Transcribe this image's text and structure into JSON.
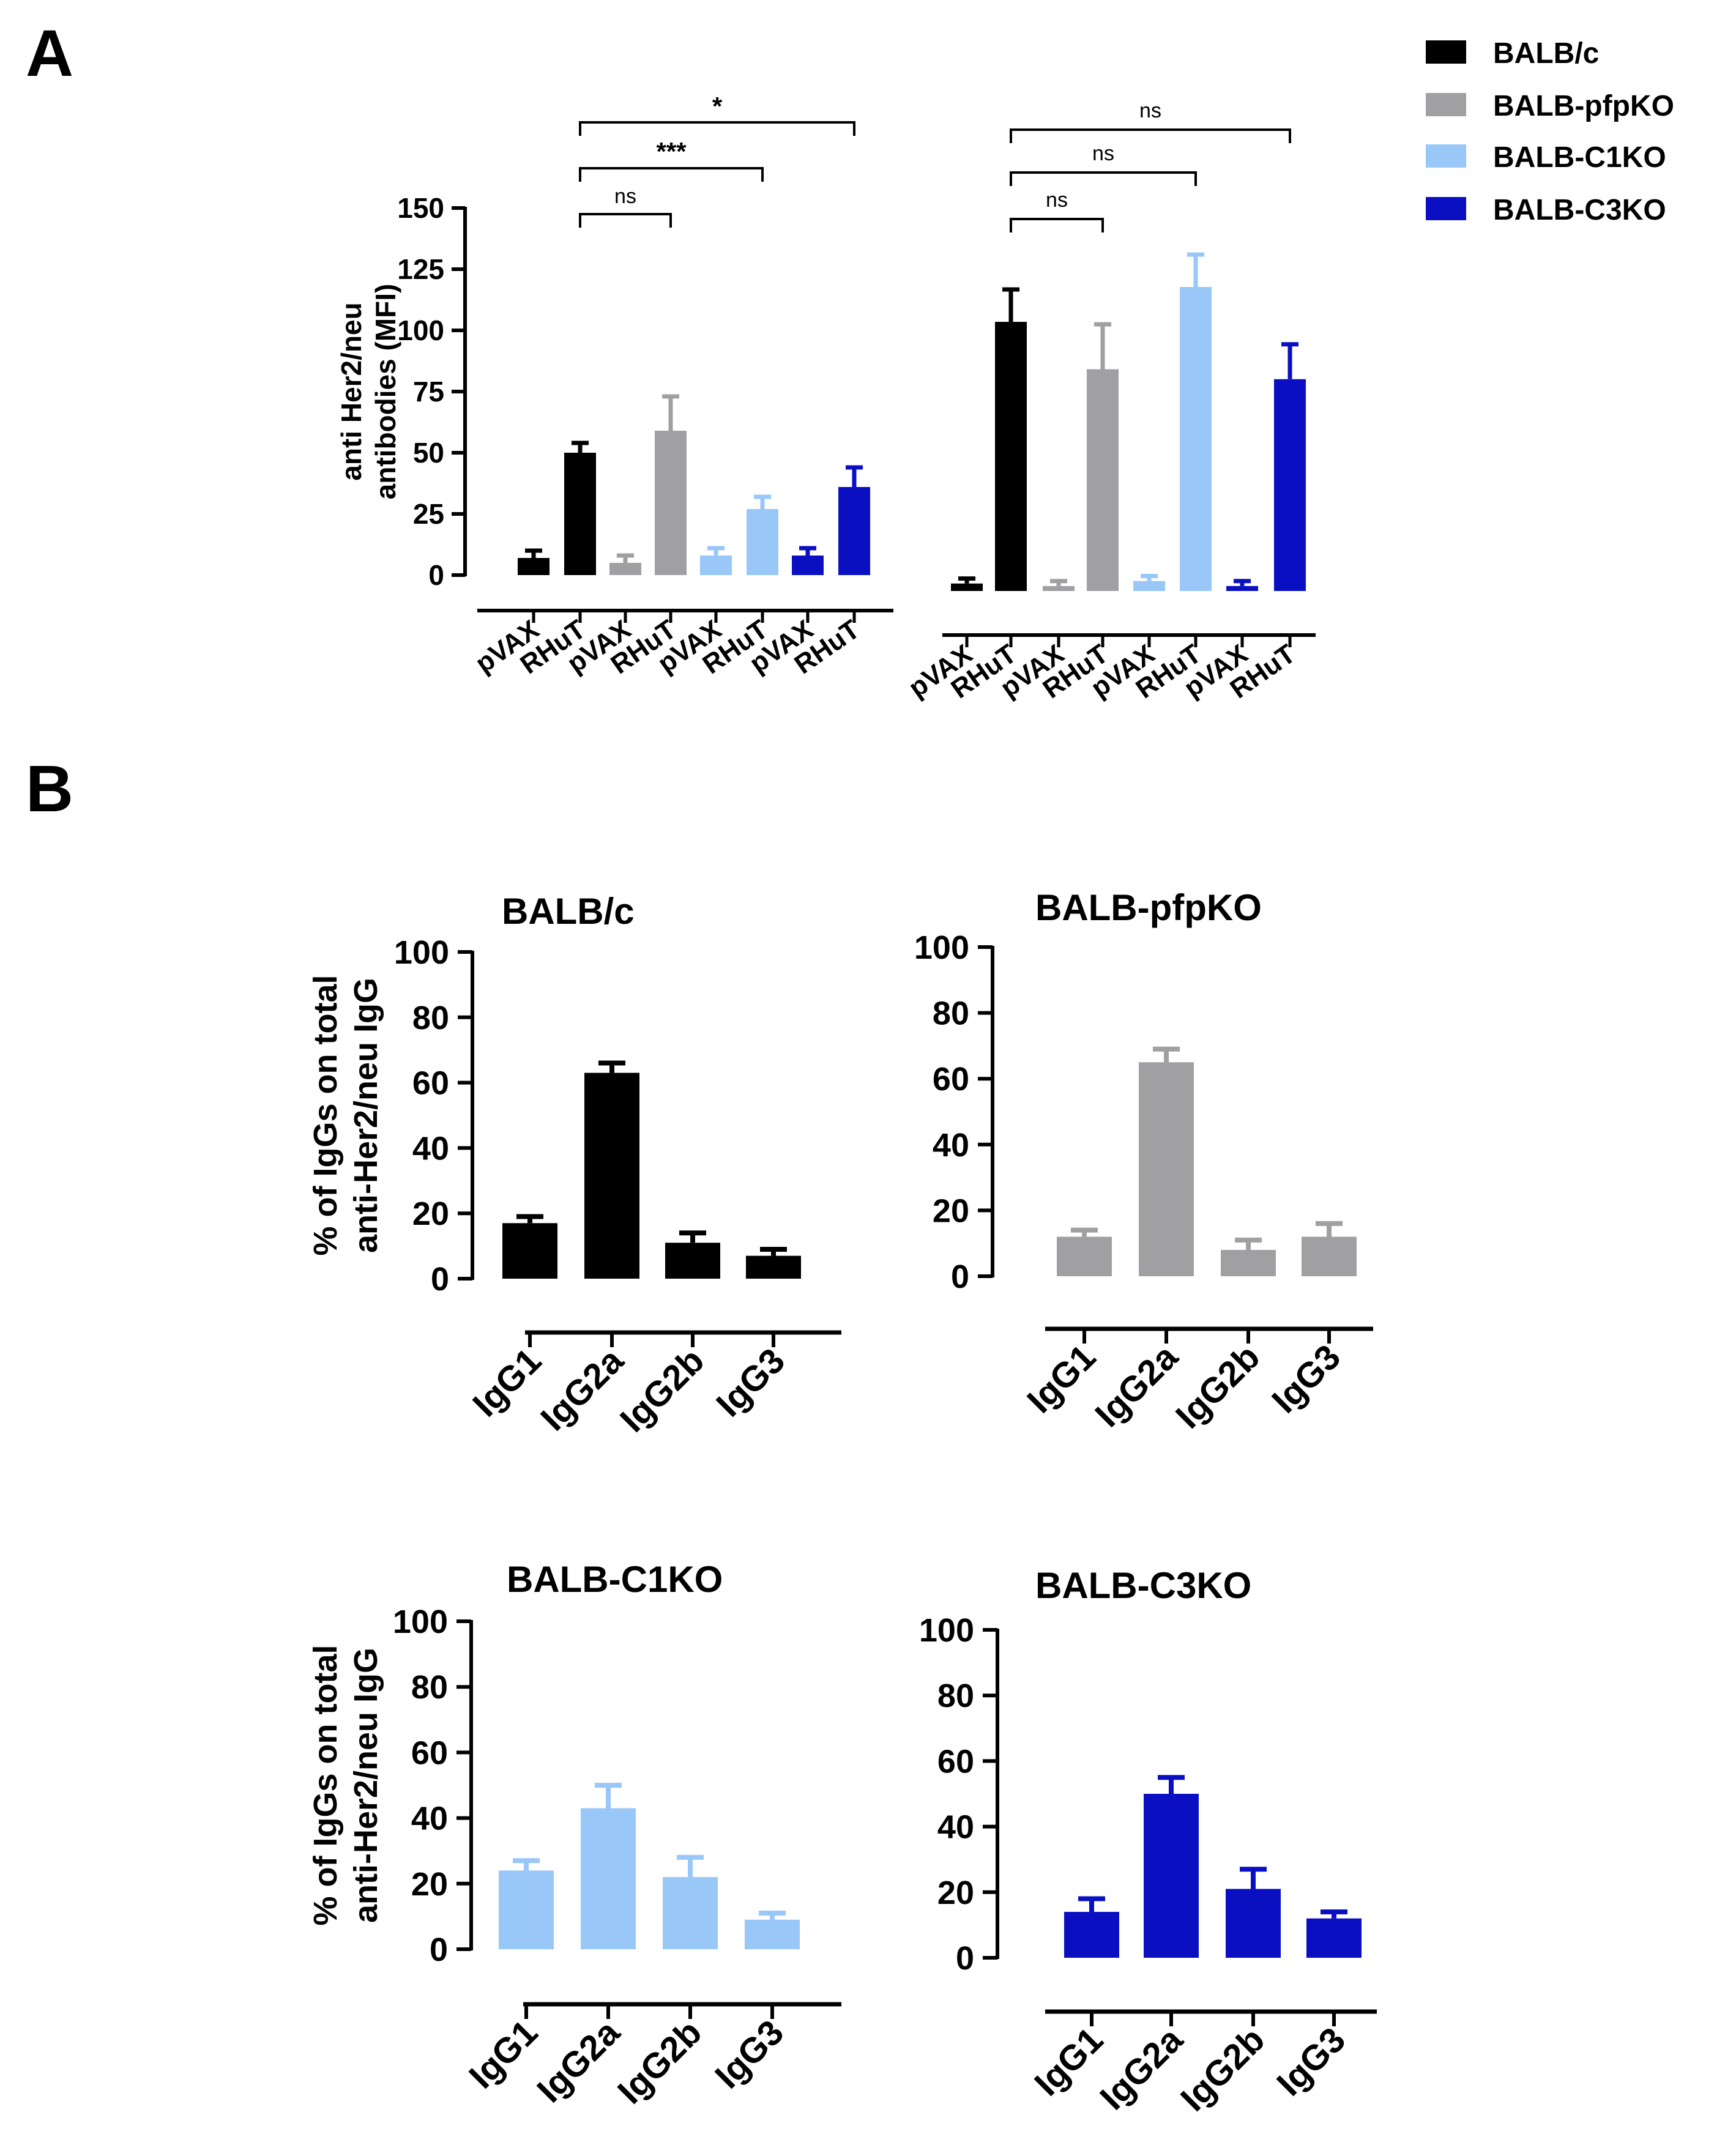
{
  "figure": {
    "panel_a_letter": "A",
    "panel_b_letter": "B"
  },
  "legend": [
    {
      "label": "BALB/c",
      "color": "#000000"
    },
    {
      "label": "BALB-pfpKO",
      "color": "#a0a0a3"
    },
    {
      "label": "BALB-C1KO",
      "color": "#99c7f8"
    },
    {
      "label": "BALB-C3KO",
      "color": "#0a10c2"
    }
  ],
  "chart_data": [
    {
      "id": "a-left",
      "type": "bar",
      "title": "",
      "ylabel_lines": [
        "anti Her2/neu",
        "antibodies (MFI)"
      ],
      "xlabel": "",
      "ylim": [
        0,
        150
      ],
      "yticks": [
        "0",
        "25",
        "50",
        "75",
        "100",
        "125",
        "150"
      ],
      "categories": [
        "pVAX",
        "RHuT",
        "pVAX",
        "RHuT",
        "pVAX",
        "RHuT",
        "pVAX",
        "RHuT"
      ],
      "values": [
        7,
        50,
        5,
        59,
        8,
        27,
        8,
        36
      ],
      "errors": [
        3,
        4,
        3,
        14,
        3,
        5,
        3,
        8
      ],
      "colors": [
        "#000000",
        "#000000",
        "#a0a0a3",
        "#a0a0a3",
        "#99c7f8",
        "#99c7f8",
        "#0a10c2",
        "#0a10c2"
      ],
      "significance": [
        {
          "from": 1,
          "to": 3,
          "label": "ns"
        },
        {
          "from": 1,
          "to": 5,
          "label": "***"
        },
        {
          "from": 1,
          "to": 7,
          "label": "*"
        }
      ]
    },
    {
      "id": "a-right",
      "type": "bar",
      "title": "",
      "ylabel_lines": [],
      "xlabel": "",
      "ylim": [
        0,
        150
      ],
      "yticks": [],
      "categories": [
        "pVAX",
        "RHuT",
        "pVAX",
        "RHuT",
        "pVAX",
        "RHuT",
        "pVAX",
        "RHuT"
      ],
      "values": [
        3,
        108,
        2,
        89,
        4,
        122,
        2,
        85
      ],
      "errors": [
        2,
        13,
        2,
        18,
        2,
        13,
        2,
        14
      ],
      "colors": [
        "#000000",
        "#000000",
        "#a0a0a3",
        "#a0a0a3",
        "#99c7f8",
        "#99c7f8",
        "#0a10c2",
        "#0a10c2"
      ],
      "significance": [
        {
          "from": 1,
          "to": 3,
          "label": "ns"
        },
        {
          "from": 1,
          "to": 5,
          "label": "ns"
        },
        {
          "from": 1,
          "to": 7,
          "label": "ns"
        }
      ]
    },
    {
      "id": "b-balbc",
      "type": "bar",
      "title": "BALB/c",
      "ylabel_lines": [
        "% of IgGs on total",
        "anti-Her2/neu IgG"
      ],
      "ylim": [
        0,
        100
      ],
      "yticks": [
        "0",
        "20",
        "40",
        "60",
        "80",
        "100"
      ],
      "categories": [
        "IgG1",
        "IgG2a",
        "IgG2b",
        "IgG3"
      ],
      "values": [
        17,
        63,
        11,
        7
      ],
      "errors": [
        2,
        3,
        3,
        2
      ],
      "color": "#000000"
    },
    {
      "id": "b-pfpko",
      "type": "bar",
      "title": "BALB-pfpKO",
      "ylabel_lines": [],
      "ylim": [
        0,
        100
      ],
      "yticks": [
        "0",
        "20",
        "40",
        "60",
        "80",
        "100"
      ],
      "categories": [
        "IgG1",
        "IgG2a",
        "IgG2b",
        "IgG3"
      ],
      "values": [
        12,
        65,
        8,
        12
      ],
      "errors": [
        2,
        4,
        3,
        4
      ],
      "color": "#a0a0a3"
    },
    {
      "id": "b-c1ko",
      "type": "bar",
      "title": "BALB-C1KO",
      "ylabel_lines": [
        "% of IgGs on total",
        "anti-Her2/neu IgG"
      ],
      "ylim": [
        0,
        100
      ],
      "yticks": [
        "0",
        "20",
        "40",
        "60",
        "80",
        "100"
      ],
      "categories": [
        "IgG1",
        "IgG2a",
        "IgG2b",
        "IgG3"
      ],
      "values": [
        24,
        43,
        22,
        9
      ],
      "errors": [
        3,
        7,
        6,
        2
      ],
      "color": "#99c7f8"
    },
    {
      "id": "b-c3ko",
      "type": "bar",
      "title": "BALB-C3KO",
      "ylabel_lines": [],
      "ylim": [
        0,
        100
      ],
      "yticks": [
        "0",
        "20",
        "40",
        "60",
        "80",
        "100"
      ],
      "categories": [
        "IgG1",
        "IgG2a",
        "IgG2b",
        "IgG3"
      ],
      "values": [
        14,
        50,
        21,
        12
      ],
      "errors": [
        4,
        5,
        6,
        2
      ],
      "color": "#0a10c2"
    }
  ]
}
